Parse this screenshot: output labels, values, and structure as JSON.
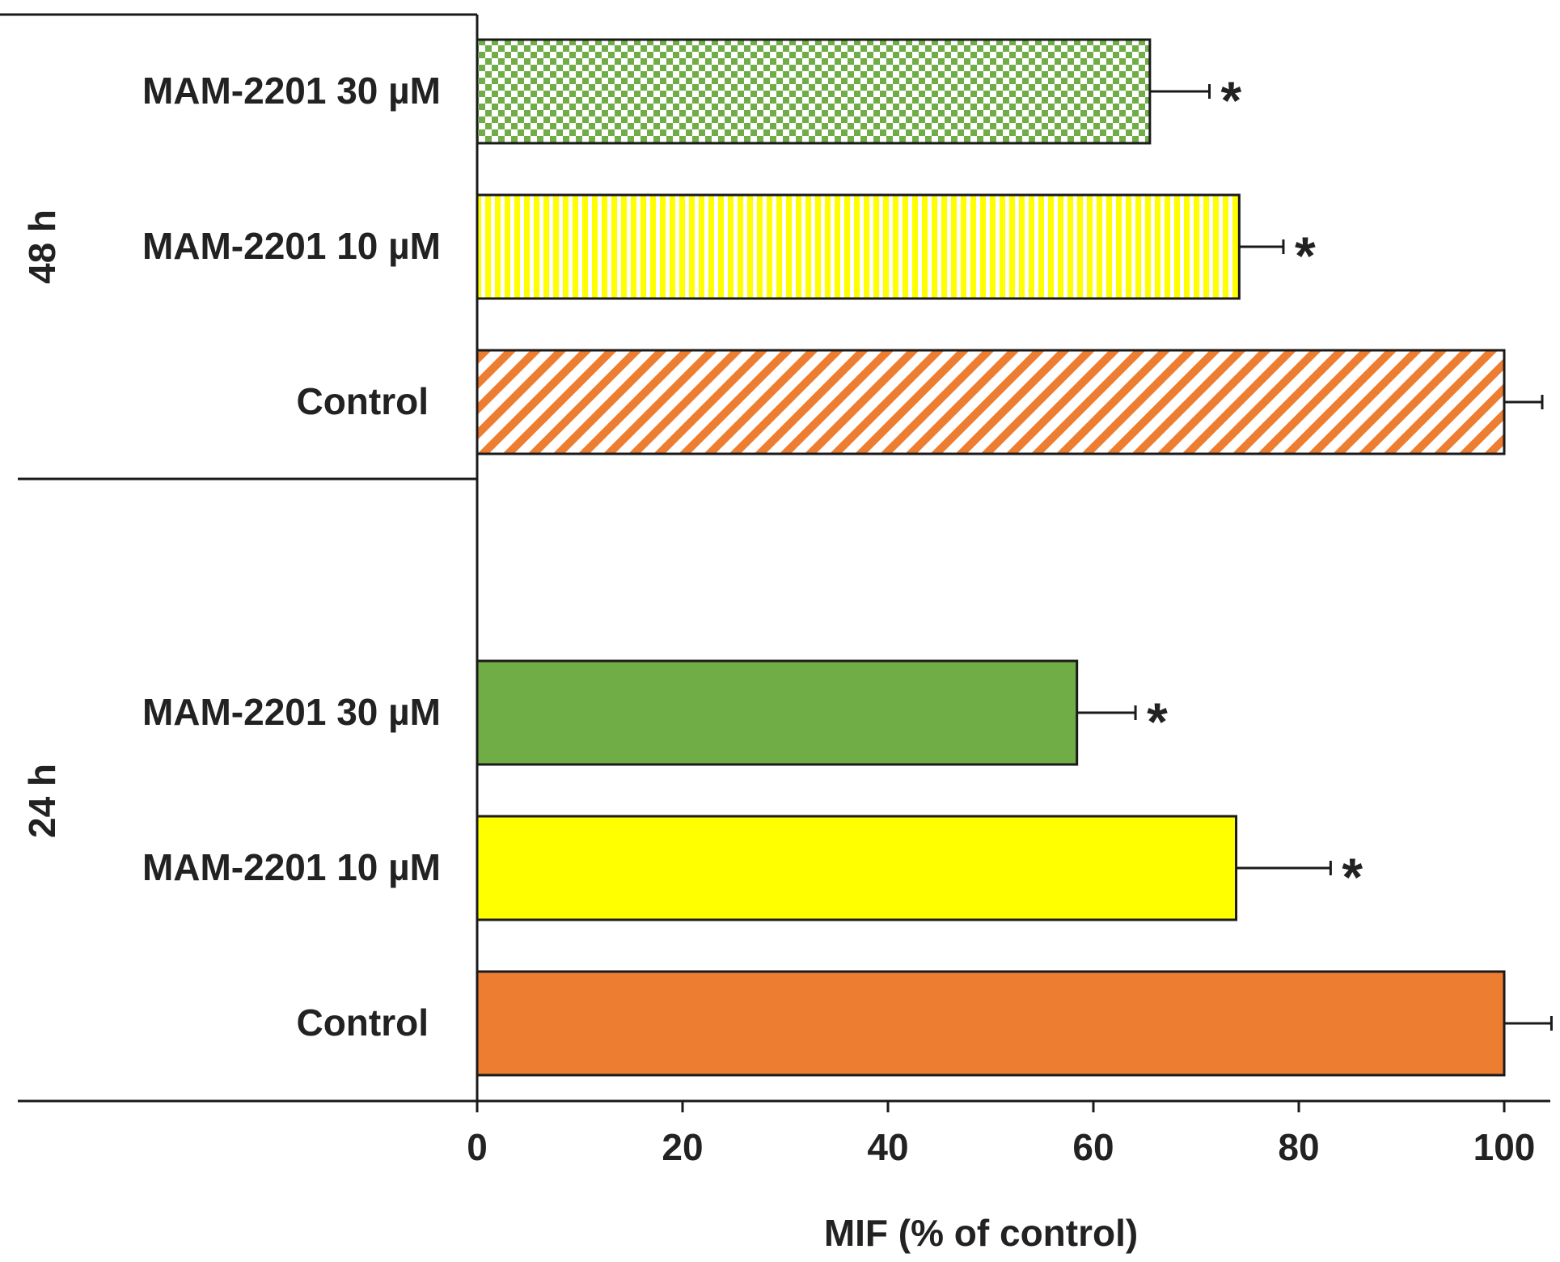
{
  "chart_data": {
    "type": "bar",
    "orientation": "horizontal",
    "xlabel": "MIF (% of control)",
    "xlim": [
      0,
      105
    ],
    "xticks": [
      "0",
      "20",
      "40",
      "60",
      "80",
      "100"
    ],
    "groups": [
      {
        "name": "48 h",
        "bars": [
          {
            "label": "MAM-2201 30 µM",
            "value": 65.5,
            "error": 5.8,
            "marker": "*",
            "color": "#70AD47",
            "pattern": "checker"
          },
          {
            "label": "MAM-2201 10 µM",
            "value": 74.2,
            "error": 4.3,
            "marker": "*",
            "color": "#FFFF00",
            "pattern": "vertical-lines"
          },
          {
            "label": "Control",
            "value": 100,
            "error": 3.7,
            "marker": "",
            "color": "#ED7D31",
            "pattern": "diagonal-lines"
          }
        ]
      },
      {
        "name": "24 h",
        "bars": [
          {
            "label": "MAM-2201 30 µM",
            "value": 58.4,
            "error": 5.7,
            "marker": "*",
            "color": "#70AD47",
            "pattern": "solid"
          },
          {
            "label": "MAM-2201 10 µM",
            "value": 73.9,
            "error": 9.2,
            "marker": "*",
            "color": "#FFFF00",
            "pattern": "solid"
          },
          {
            "label": "Control",
            "value": 100,
            "error": 4.6,
            "marker": "",
            "color": "#ED7D31",
            "pattern": "solid"
          }
        ]
      }
    ]
  }
}
